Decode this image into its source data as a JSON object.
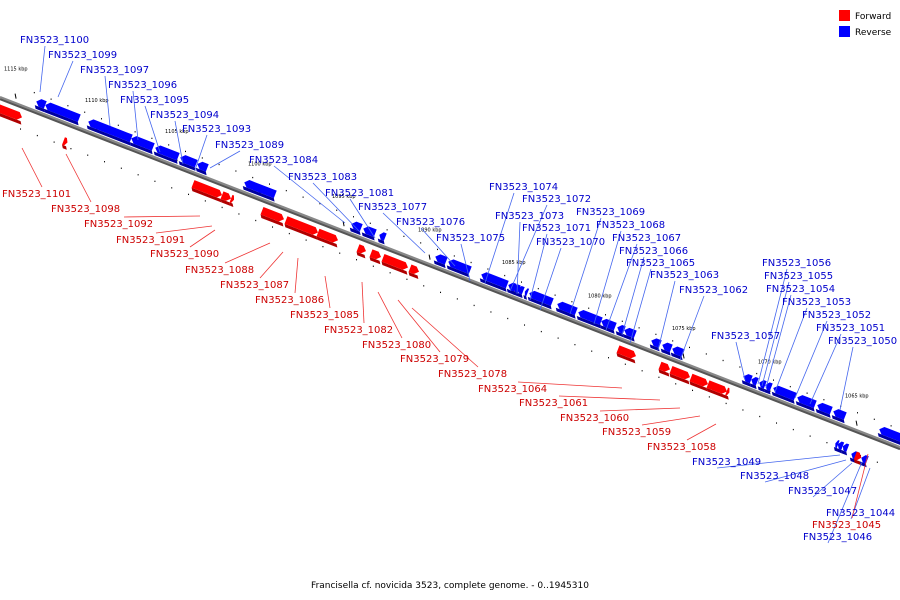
{
  "caption": "Francisella cf. novicida 3523, complete genome. - 0..1945310",
  "legend": [
    {
      "label": "Forward",
      "color": "#ff0000"
    },
    {
      "label": "Reverse",
      "color": "#0000ff"
    }
  ],
  "colors": {
    "forward": "#ff0000",
    "forward_dark": "#b00000",
    "reverse": "#0000ff",
    "reverse_dark": "#0000a0",
    "forward_leader": "#ee3333",
    "reverse_leader": "#4466ee",
    "backbone": "#888888"
  },
  "scale_ticks": [
    "1115 kbp",
    "1110 kbp",
    "1105 kbp",
    "1100 kbp",
    "1095 kbp",
    "1090 kbp",
    "1085 kbp",
    "1080 kbp",
    "1075 kbp",
    "1070 kbp",
    "1065 kbp"
  ],
  "genes": [
    {
      "name": "FN3523_1100",
      "strand": "reverse"
    },
    {
      "name": "FN3523_1099",
      "strand": "reverse"
    },
    {
      "name": "FN3523_1097",
      "strand": "reverse"
    },
    {
      "name": "FN3523_1096",
      "strand": "reverse"
    },
    {
      "name": "FN3523_1095",
      "strand": "reverse"
    },
    {
      "name": "FN3523_1094",
      "strand": "reverse"
    },
    {
      "name": "FN3523_1093",
      "strand": "reverse"
    },
    {
      "name": "FN3523_1089",
      "strand": "reverse"
    },
    {
      "name": "FN3523_1084",
      "strand": "reverse"
    },
    {
      "name": "FN3523_1083",
      "strand": "reverse"
    },
    {
      "name": "FN3523_1081",
      "strand": "reverse"
    },
    {
      "name": "FN3523_1077",
      "strand": "reverse"
    },
    {
      "name": "FN3523_1076",
      "strand": "reverse"
    },
    {
      "name": "FN3523_1075",
      "strand": "reverse"
    },
    {
      "name": "FN3523_1074",
      "strand": "reverse"
    },
    {
      "name": "FN3523_1072",
      "strand": "reverse"
    },
    {
      "name": "FN3523_1073",
      "strand": "reverse"
    },
    {
      "name": "FN3523_1071",
      "strand": "reverse"
    },
    {
      "name": "FN3523_1070",
      "strand": "reverse"
    },
    {
      "name": "FN3523_1069",
      "strand": "reverse"
    },
    {
      "name": "FN3523_1068",
      "strand": "reverse"
    },
    {
      "name": "FN3523_1067",
      "strand": "reverse"
    },
    {
      "name": "FN3523_1066",
      "strand": "reverse"
    },
    {
      "name": "FN3523_1065",
      "strand": "reverse"
    },
    {
      "name": "FN3523_1063",
      "strand": "reverse"
    },
    {
      "name": "FN3523_1062",
      "strand": "reverse"
    },
    {
      "name": "FN3523_1057",
      "strand": "reverse"
    },
    {
      "name": "FN3523_1056",
      "strand": "reverse"
    },
    {
      "name": "FN3523_1055",
      "strand": "reverse"
    },
    {
      "name": "FN3523_1054",
      "strand": "reverse"
    },
    {
      "name": "FN3523_1053",
      "strand": "reverse"
    },
    {
      "name": "FN3523_1052",
      "strand": "reverse"
    },
    {
      "name": "FN3523_1051",
      "strand": "reverse"
    },
    {
      "name": "FN3523_1050",
      "strand": "reverse"
    },
    {
      "name": "FN3523_1101",
      "strand": "forward"
    },
    {
      "name": "FN3523_1098",
      "strand": "forward"
    },
    {
      "name": "FN3523_1092",
      "strand": "forward"
    },
    {
      "name": "FN3523_1091",
      "strand": "forward"
    },
    {
      "name": "FN3523_1090",
      "strand": "forward"
    },
    {
      "name": "FN3523_1088",
      "strand": "forward"
    },
    {
      "name": "FN3523_1087",
      "strand": "forward"
    },
    {
      "name": "FN3523_1086",
      "strand": "forward"
    },
    {
      "name": "FN3523_1085",
      "strand": "forward"
    },
    {
      "name": "FN3523_1082",
      "strand": "forward"
    },
    {
      "name": "FN3523_1080",
      "strand": "forward"
    },
    {
      "name": "FN3523_1079",
      "strand": "forward"
    },
    {
      "name": "FN3523_1078",
      "strand": "forward"
    },
    {
      "name": "FN3523_1064",
      "strand": "forward"
    },
    {
      "name": "FN3523_1061",
      "strand": "forward"
    },
    {
      "name": "FN3523_1060",
      "strand": "forward"
    },
    {
      "name": "FN3523_1059",
      "strand": "forward"
    },
    {
      "name": "FN3523_1058",
      "strand": "forward"
    },
    {
      "name": "FN3523_1049",
      "strand": "reverse"
    },
    {
      "name": "FN3523_1048",
      "strand": "reverse"
    },
    {
      "name": "FN3523_1047",
      "strand": "reverse"
    },
    {
      "name": "FN3523_1044",
      "strand": "reverse"
    },
    {
      "name": "FN3523_1045",
      "strand": "forward"
    },
    {
      "name": "FN3523_1046",
      "strand": "reverse"
    }
  ]
}
